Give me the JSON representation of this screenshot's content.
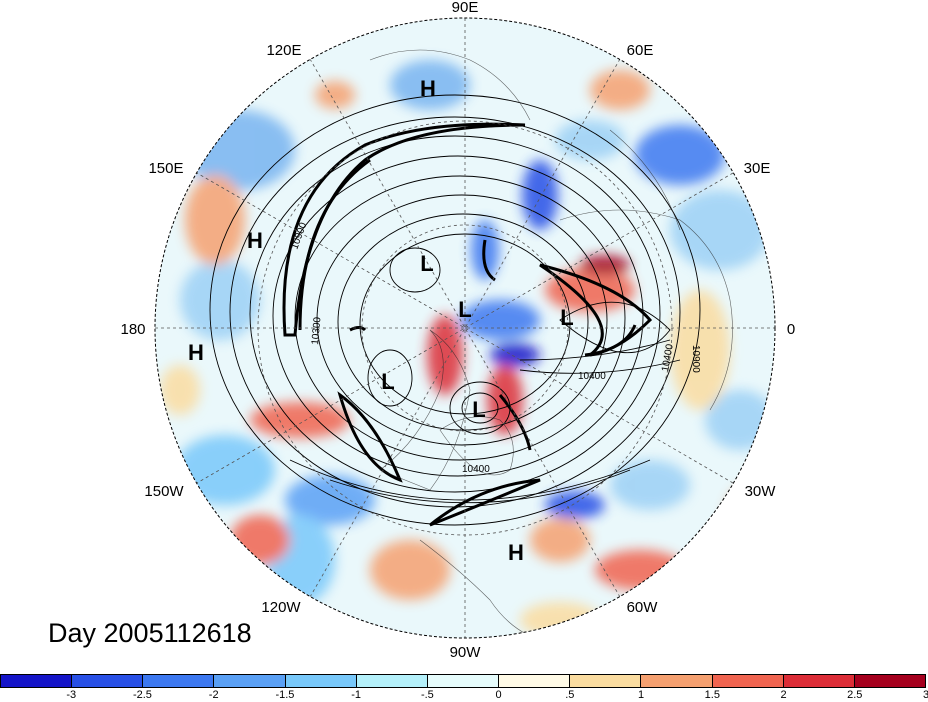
{
  "title": "Day 2005112618",
  "longitude_labels": {
    "lon_90e": "90E",
    "lon_60e": "60E",
    "lon_30e": "30E",
    "lon_0": "0",
    "lon_30w": "30W",
    "lon_60w": "60W",
    "lon_90w": "90W",
    "lon_120w": "120W",
    "lon_150w": "150W",
    "lon_180": "180",
    "lon_150e": "150E",
    "lon_120e": "120E"
  },
  "pressure_systems": [
    {
      "type": "H",
      "text": "H"
    },
    {
      "type": "H",
      "text": "H"
    },
    {
      "type": "H",
      "text": "H"
    },
    {
      "type": "H",
      "text": "H"
    },
    {
      "type": "L",
      "text": "L"
    },
    {
      "type": "L",
      "text": "L"
    },
    {
      "type": "L",
      "text": "L"
    },
    {
      "type": "L",
      "text": "L"
    },
    {
      "type": "L",
      "text": "L"
    }
  ],
  "contour_labels": {
    "c1": "10900",
    "c2": "10300",
    "c3": "10400",
    "c4": "10400",
    "c5": "10900",
    "c6": "10400"
  },
  "colorbar": {
    "labels": [
      "-3",
      "-2.5",
      "-2",
      "-1.5",
      "-1",
      "-.5",
      "0",
      ".5",
      "1",
      "1.5",
      "2",
      "2.5",
      "3"
    ],
    "colors": [
      "#1414c8",
      "#2850e6",
      "#3c78f0",
      "#5aa0f5",
      "#78c8fa",
      "#b4f0fa",
      "#e6fcfc",
      "#fffae6",
      "#fadca0",
      "#f5a070",
      "#f06450",
      "#dc2d37",
      "#a5001e"
    ]
  }
}
